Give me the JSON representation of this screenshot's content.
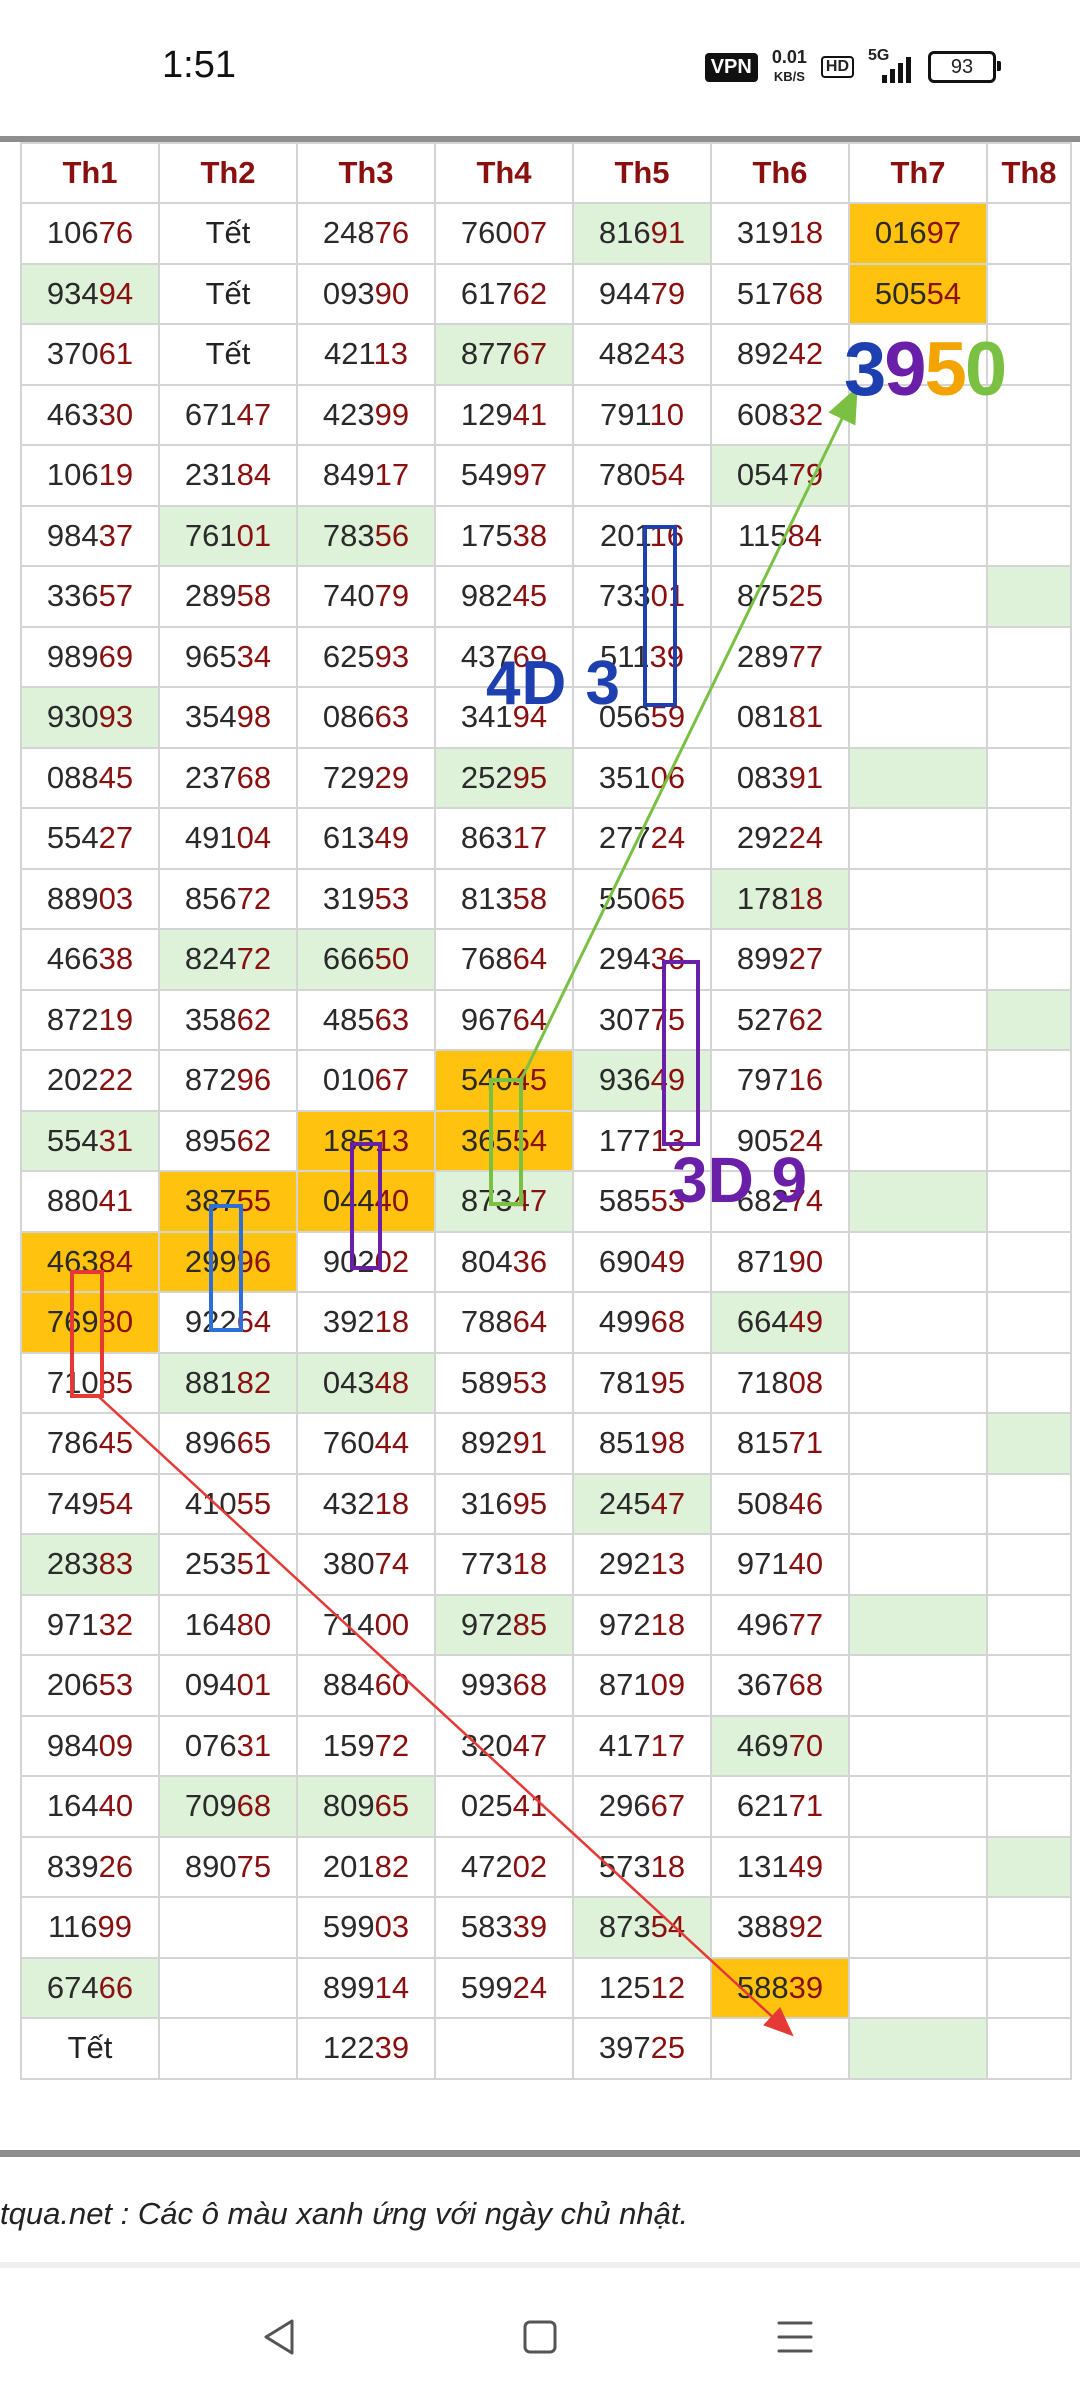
{
  "status_bar": {
    "time": "1:51",
    "vpn": "VPN",
    "speed_value": "0.01",
    "speed_unit": "KB/S",
    "hd": "HD",
    "network": "5G",
    "battery": "93"
  },
  "table": {
    "headers": [
      "Th1",
      "Th2",
      "Th3",
      "Th4",
      "Th5",
      "Th6",
      "Th7",
      "Th8"
    ],
    "rows": [
      [
        {
          "v": "10676"
        },
        {
          "v": "Tết"
        },
        {
          "v": "24876"
        },
        {
          "v": "76007"
        },
        {
          "v": "81691",
          "c": "g"
        },
        {
          "v": "31918"
        },
        {
          "v": "01697",
          "c": "o"
        },
        {
          "v": ""
        }
      ],
      [
        {
          "v": "93494",
          "c": "g"
        },
        {
          "v": "Tết"
        },
        {
          "v": "09390"
        },
        {
          "v": "61762"
        },
        {
          "v": "94479"
        },
        {
          "v": "51768"
        },
        {
          "v": "50554",
          "c": "o"
        },
        {
          "v": ""
        }
      ],
      [
        {
          "v": "37061"
        },
        {
          "v": "Tết"
        },
        {
          "v": "42113"
        },
        {
          "v": "87767",
          "c": "g"
        },
        {
          "v": "48243"
        },
        {
          "v": "89242"
        },
        {
          "v": ""
        },
        {
          "v": ""
        }
      ],
      [
        {
          "v": "46330"
        },
        {
          "v": "67147"
        },
        {
          "v": "42399"
        },
        {
          "v": "12941"
        },
        {
          "v": "79110"
        },
        {
          "v": "60832"
        },
        {
          "v": ""
        },
        {
          "v": ""
        }
      ],
      [
        {
          "v": "10619"
        },
        {
          "v": "23184"
        },
        {
          "v": "84917"
        },
        {
          "v": "54997"
        },
        {
          "v": "78054"
        },
        {
          "v": "05479",
          "c": "g"
        },
        {
          "v": ""
        },
        {
          "v": ""
        }
      ],
      [
        {
          "v": "98437"
        },
        {
          "v": "76101",
          "c": "g"
        },
        {
          "v": "78356",
          "c": "g"
        },
        {
          "v": "17538"
        },
        {
          "v": "20116"
        },
        {
          "v": "11584"
        },
        {
          "v": ""
        },
        {
          "v": ""
        }
      ],
      [
        {
          "v": "33657"
        },
        {
          "v": "28958"
        },
        {
          "v": "74079"
        },
        {
          "v": "98245"
        },
        {
          "v": "73301"
        },
        {
          "v": "87525"
        },
        {
          "v": ""
        },
        {
          "v": "",
          "c": "g"
        }
      ],
      [
        {
          "v": "98969"
        },
        {
          "v": "96534"
        },
        {
          "v": "62593"
        },
        {
          "v": "43769"
        },
        {
          "v": "51139"
        },
        {
          "v": "28977"
        },
        {
          "v": ""
        },
        {
          "v": ""
        }
      ],
      [
        {
          "v": "93093",
          "c": "g"
        },
        {
          "v": "35498"
        },
        {
          "v": "08663"
        },
        {
          "v": "34194"
        },
        {
          "v": "05659"
        },
        {
          "v": "08181"
        },
        {
          "v": ""
        },
        {
          "v": ""
        }
      ],
      [
        {
          "v": "08845"
        },
        {
          "v": "23768"
        },
        {
          "v": "72929"
        },
        {
          "v": "25295",
          "c": "g"
        },
        {
          "v": "35106"
        },
        {
          "v": "08391"
        },
        {
          "v": "",
          "c": "g"
        },
        {
          "v": ""
        }
      ],
      [
        {
          "v": "55427"
        },
        {
          "v": "49104"
        },
        {
          "v": "61349"
        },
        {
          "v": "86317"
        },
        {
          "v": "27724"
        },
        {
          "v": "29224"
        },
        {
          "v": ""
        },
        {
          "v": ""
        }
      ],
      [
        {
          "v": "88903"
        },
        {
          "v": "85672"
        },
        {
          "v": "31953"
        },
        {
          "v": "81358"
        },
        {
          "v": "55065"
        },
        {
          "v": "17818",
          "c": "g"
        },
        {
          "v": ""
        },
        {
          "v": ""
        }
      ],
      [
        {
          "v": "46638"
        },
        {
          "v": "82472",
          "c": "g"
        },
        {
          "v": "66650",
          "c": "g"
        },
        {
          "v": "76864"
        },
        {
          "v": "29436"
        },
        {
          "v": "89927"
        },
        {
          "v": ""
        },
        {
          "v": ""
        }
      ],
      [
        {
          "v": "87219"
        },
        {
          "v": "35862"
        },
        {
          "v": "48563"
        },
        {
          "v": "96764"
        },
        {
          "v": "30775"
        },
        {
          "v": "52762"
        },
        {
          "v": ""
        },
        {
          "v": "",
          "c": "g"
        }
      ],
      [
        {
          "v": "20222"
        },
        {
          "v": "87296"
        },
        {
          "v": "01067"
        },
        {
          "v": "54045",
          "c": "o"
        },
        {
          "v": "93649",
          "c": "g"
        },
        {
          "v": "79716"
        },
        {
          "v": ""
        },
        {
          "v": ""
        }
      ],
      [
        {
          "v": "55431",
          "c": "g"
        },
        {
          "v": "89562"
        },
        {
          "v": "18513",
          "c": "o"
        },
        {
          "v": "36554",
          "c": "o"
        },
        {
          "v": "17713"
        },
        {
          "v": "90524"
        },
        {
          "v": ""
        },
        {
          "v": ""
        }
      ],
      [
        {
          "v": "88041"
        },
        {
          "v": "38755",
          "c": "o"
        },
        {
          "v": "04440",
          "c": "o"
        },
        {
          "v": "87347",
          "c": "g"
        },
        {
          "v": "58553"
        },
        {
          "v": "68274"
        },
        {
          "v": "",
          "c": "g"
        },
        {
          "v": ""
        }
      ],
      [
        {
          "v": "46384",
          "c": "o"
        },
        {
          "v": "29996",
          "c": "o"
        },
        {
          "v": "90202"
        },
        {
          "v": "80436"
        },
        {
          "v": "69049"
        },
        {
          "v": "87190"
        },
        {
          "v": ""
        },
        {
          "v": ""
        }
      ],
      [
        {
          "v": "76980",
          "c": "o"
        },
        {
          "v": "92264"
        },
        {
          "v": "39218"
        },
        {
          "v": "78864"
        },
        {
          "v": "49968"
        },
        {
          "v": "66449",
          "c": "g"
        },
        {
          "v": ""
        },
        {
          "v": ""
        }
      ],
      [
        {
          "v": "71085"
        },
        {
          "v": "88182",
          "c": "g"
        },
        {
          "v": "04348",
          "c": "g"
        },
        {
          "v": "58953"
        },
        {
          "v": "78195"
        },
        {
          "v": "71808"
        },
        {
          "v": ""
        },
        {
          "v": ""
        }
      ],
      [
        {
          "v": "78645"
        },
        {
          "v": "89665"
        },
        {
          "v": "76044"
        },
        {
          "v": "89291"
        },
        {
          "v": "85198"
        },
        {
          "v": "81571"
        },
        {
          "v": ""
        },
        {
          "v": "",
          "c": "g"
        }
      ],
      [
        {
          "v": "74954"
        },
        {
          "v": "41055"
        },
        {
          "v": "43218"
        },
        {
          "v": "31695"
        },
        {
          "v": "24547",
          "c": "g"
        },
        {
          "v": "50846"
        },
        {
          "v": ""
        },
        {
          "v": ""
        }
      ],
      [
        {
          "v": "28383",
          "c": "g"
        },
        {
          "v": "25351"
        },
        {
          "v": "38074"
        },
        {
          "v": "77318"
        },
        {
          "v": "29213"
        },
        {
          "v": "97140"
        },
        {
          "v": ""
        },
        {
          "v": ""
        }
      ],
      [
        {
          "v": "97132"
        },
        {
          "v": "16480"
        },
        {
          "v": "71400"
        },
        {
          "v": "97285",
          "c": "g"
        },
        {
          "v": "97218"
        },
        {
          "v": "49677"
        },
        {
          "v": "",
          "c": "g"
        },
        {
          "v": ""
        }
      ],
      [
        {
          "v": "20653"
        },
        {
          "v": "09401"
        },
        {
          "v": "88460"
        },
        {
          "v": "99368"
        },
        {
          "v": "87109"
        },
        {
          "v": "36768"
        },
        {
          "v": ""
        },
        {
          "v": ""
        }
      ],
      [
        {
          "v": "98409"
        },
        {
          "v": "07631"
        },
        {
          "v": "15972"
        },
        {
          "v": "32047"
        },
        {
          "v": "41717"
        },
        {
          "v": "46970",
          "c": "g"
        },
        {
          "v": ""
        },
        {
          "v": ""
        }
      ],
      [
        {
          "v": "16440"
        },
        {
          "v": "70968",
          "c": "g"
        },
        {
          "v": "80965",
          "c": "g"
        },
        {
          "v": "02541"
        },
        {
          "v": "29667"
        },
        {
          "v": "62171"
        },
        {
          "v": ""
        },
        {
          "v": ""
        }
      ],
      [
        {
          "v": "83926"
        },
        {
          "v": "89075"
        },
        {
          "v": "20182"
        },
        {
          "v": "47202"
        },
        {
          "v": "57318"
        },
        {
          "v": "13149"
        },
        {
          "v": ""
        },
        {
          "v": "",
          "c": "g"
        }
      ],
      [
        {
          "v": "11699"
        },
        {
          "v": ""
        },
        {
          "v": "59903"
        },
        {
          "v": "58339"
        },
        {
          "v": "87354",
          "c": "g"
        },
        {
          "v": "38892"
        },
        {
          "v": ""
        },
        {
          "v": ""
        }
      ],
      [
        {
          "v": "67466",
          "c": "g"
        },
        {
          "v": ""
        },
        {
          "v": "89914"
        },
        {
          "v": "59924"
        },
        {
          "v": "12512"
        },
        {
          "v": "58839",
          "c": "o"
        },
        {
          "v": ""
        },
        {
          "v": ""
        }
      ],
      [
        {
          "v": "Tết"
        },
        {
          "v": ""
        },
        {
          "v": "12239"
        },
        {
          "v": ""
        },
        {
          "v": "39725"
        },
        {
          "v": ""
        },
        {
          "v": "",
          "c": "g"
        },
        {
          "v": ""
        }
      ]
    ]
  },
  "annotations": {
    "label_4d": "4D 3",
    "label_3d": "3D 9",
    "big_number_digits": [
      {
        "ch": "3",
        "color": "#1e3fb0"
      },
      {
        "ch": "9",
        "color": "#6a1fa8"
      },
      {
        "ch": "5",
        "color": "#f3a400"
      },
      {
        "ch": "0",
        "color": "#7ac143"
      }
    ],
    "colors": {
      "blue": "#1e3fb0",
      "purple": "#6a1fa8",
      "green": "#7ac143",
      "red": "#e53935",
      "orange_cell": "#ffc20e",
      "green_cell": "#ddf2d9"
    }
  },
  "footer": {
    "note": "tqua.net : Các ô màu xanh ứng với ngày chủ nhật."
  },
  "navbar": {
    "back_icon": "back-triangle-icon",
    "home_icon": "home-square-icon",
    "menu_icon": "menu-lines-icon"
  }
}
